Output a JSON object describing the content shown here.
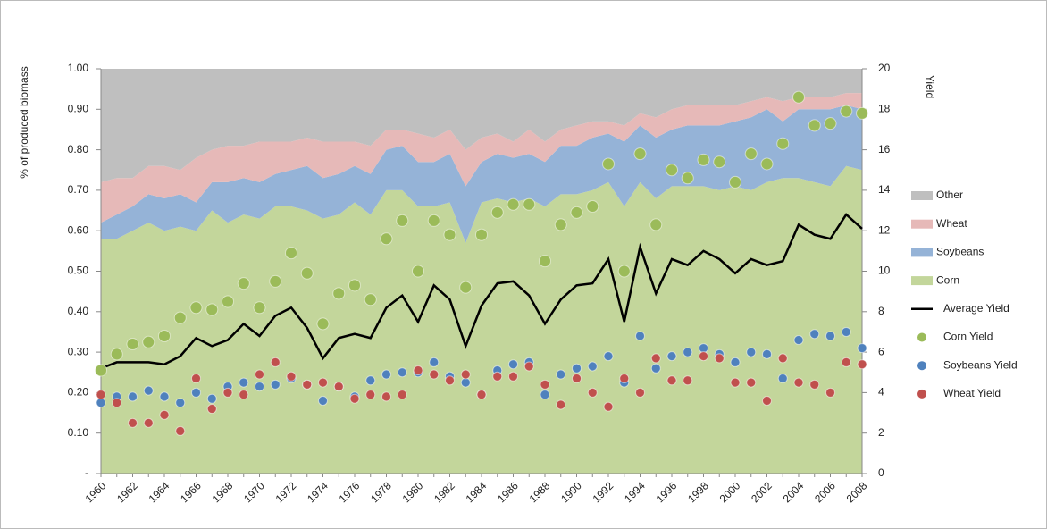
{
  "chart_data": {
    "type": "area",
    "y_label": "% of produced biomass",
    "y2_label": "Yield",
    "categories": [
      "1960",
      null,
      "1962",
      null,
      "1964",
      null,
      "1966",
      null,
      "1968",
      null,
      "1970",
      null,
      "1972",
      null,
      "1974",
      null,
      "1976",
      null,
      "1978",
      null,
      "1980",
      null,
      "1982",
      null,
      "1984",
      null,
      "1986",
      null,
      "1988",
      null,
      "1990",
      null,
      "1992",
      null,
      "1994",
      null,
      "1996",
      null,
      "1998",
      null,
      "2000",
      null,
      "2002",
      null,
      "2004",
      null,
      "2006",
      null,
      "2008"
    ],
    "ylim": [
      0,
      1
    ],
    "yticks": [
      {
        "value": 0,
        "label": "-"
      },
      {
        "value": 0.1,
        "label": "0.10"
      },
      {
        "value": 0.2,
        "label": "0.20"
      },
      {
        "value": 0.3,
        "label": "0.30"
      },
      {
        "value": 0.4,
        "label": "0.40"
      },
      {
        "value": 0.5,
        "label": "0.50"
      },
      {
        "value": 0.6,
        "label": "0.60"
      },
      {
        "value": 0.7,
        "label": "0.70"
      },
      {
        "value": 0.8,
        "label": "0.80"
      },
      {
        "value": 0.9,
        "label": "0.90"
      },
      {
        "value": 1,
        "label": "1.00"
      }
    ],
    "y2lim": [
      0,
      20
    ],
    "y2ticks": [
      0,
      2,
      4,
      6,
      8,
      10,
      12,
      14,
      16,
      18,
      20
    ],
    "grid": false,
    "legend": "right",
    "series": [
      {
        "name": "Other",
        "type": "area",
        "color": "#bfbfbf",
        "values": [
          0.28,
          0.27,
          0.27,
          0.24,
          0.24,
          0.25,
          0.22,
          0.2,
          0.19,
          0.19,
          0.18,
          0.18,
          0.18,
          0.17,
          0.18,
          0.18,
          0.18,
          0.19,
          0.15,
          0.15,
          0.16,
          0.17,
          0.15,
          0.2,
          0.17,
          0.16,
          0.18,
          0.15,
          0.18,
          0.15,
          0.14,
          0.13,
          0.13,
          0.14,
          0.11,
          0.12,
          0.1,
          0.09,
          0.09,
          0.09,
          0.09,
          0.08,
          0.07,
          0.08,
          0.07,
          0.07,
          0.07,
          0.06,
          0.06
        ]
      },
      {
        "name": "Wheat",
        "type": "area",
        "color": "#e6b9b8",
        "values": [
          0.1,
          0.09,
          0.07,
          0.07,
          0.08,
          0.06,
          0.11,
          0.08,
          0.09,
          0.08,
          0.1,
          0.08,
          0.07,
          0.07,
          0.09,
          0.08,
          0.06,
          0.07,
          0.05,
          0.04,
          0.07,
          0.06,
          0.06,
          0.09,
          0.06,
          0.05,
          0.04,
          0.06,
          0.05,
          0.04,
          0.05,
          0.04,
          0.03,
          0.04,
          0.03,
          0.05,
          0.05,
          0.05,
          0.05,
          0.05,
          0.04,
          0.04,
          0.03,
          0.05,
          0.03,
          0.03,
          0.03,
          0.03,
          0.04
        ]
      },
      {
        "name": "Soybeans",
        "type": "area",
        "color": "#95b3d7",
        "values": [
          0.04,
          0.06,
          0.06,
          0.07,
          0.08,
          0.08,
          0.07,
          0.07,
          0.1,
          0.09,
          0.09,
          0.08,
          0.09,
          0.11,
          0.1,
          0.1,
          0.09,
          0.1,
          0.1,
          0.11,
          0.11,
          0.11,
          0.12,
          0.14,
          0.1,
          0.11,
          0.11,
          0.11,
          0.11,
          0.12,
          0.12,
          0.13,
          0.12,
          0.16,
          0.14,
          0.15,
          0.14,
          0.15,
          0.15,
          0.16,
          0.16,
          0.18,
          0.18,
          0.14,
          0.17,
          0.18,
          0.19,
          0.15,
          0.15
        ]
      },
      {
        "name": "Corn",
        "type": "area",
        "color": "#c3d69b",
        "values": [
          0.58,
          0.58,
          0.6,
          0.62,
          0.6,
          0.61,
          0.6,
          0.65,
          0.62,
          0.64,
          0.63,
          0.66,
          0.66,
          0.65,
          0.63,
          0.64,
          0.67,
          0.64,
          0.7,
          0.7,
          0.66,
          0.66,
          0.67,
          0.57,
          0.67,
          0.68,
          0.67,
          0.68,
          0.66,
          0.69,
          0.69,
          0.7,
          0.72,
          0.66,
          0.72,
          0.68,
          0.71,
          0.71,
          0.71,
          0.7,
          0.71,
          0.7,
          0.72,
          0.73,
          0.73,
          0.72,
          0.71,
          0.76,
          0.75
        ]
      },
      {
        "name": "Average Yield",
        "type": "line",
        "axis": "y2",
        "color": "#000000",
        "values": [
          5.2,
          5.5,
          5.5,
          5.5,
          5.4,
          5.8,
          6.7,
          6.3,
          6.6,
          7.4,
          6.8,
          7.8,
          8.2,
          7.2,
          5.7,
          6.7,
          6.9,
          6.7,
          8.2,
          8.8,
          7.5,
          9.3,
          8.6,
          6.3,
          8.3,
          9.4,
          9.5,
          8.8,
          7.4,
          8.6,
          9.3,
          9.4,
          10.6,
          7.5,
          11.2,
          8.9,
          10.6,
          10.3,
          11.0,
          10.6,
          9.9,
          10.6,
          10.3,
          10.5,
          12.3,
          11.8,
          11.6,
          12.8,
          12.1
        ]
      },
      {
        "name": "Corn Yield",
        "type": "scatter",
        "axis": "y2",
        "color": "#9bbb59",
        "values": [
          5.1,
          5.9,
          6.4,
          6.5,
          6.8,
          7.7,
          8.2,
          8.1,
          8.5,
          9.4,
          8.2,
          9.5,
          10.9,
          9.9,
          7.4,
          8.9,
          9.3,
          8.6,
          11.6,
          12.5,
          10.0,
          12.5,
          11.8,
          9.2,
          11.8,
          12.9,
          13.3,
          13.3,
          10.5,
          12.3,
          12.9,
          13.2,
          15.3,
          10.0,
          15.8,
          12.3,
          15.0,
          14.6,
          15.5,
          15.4,
          14.4,
          15.8,
          15.3,
          16.3,
          18.6,
          17.2,
          17.3,
          17.9,
          17.8
        ]
      },
      {
        "name": "Soybeans Yield",
        "type": "scatter",
        "axis": "y2",
        "color": "#4f81bd",
        "values": [
          3.5,
          3.8,
          3.8,
          4.1,
          3.8,
          3.5,
          4.0,
          3.7,
          4.3,
          4.5,
          4.3,
          4.4,
          4.7,
          4.4,
          3.6,
          4.3,
          3.8,
          4.6,
          4.9,
          5.0,
          5.0,
          5.5,
          4.8,
          4.5,
          3.9,
          5.1,
          5.4,
          5.5,
          3.9,
          4.9,
          5.2,
          5.3,
          5.8,
          4.5,
          6.8,
          5.2,
          5.8,
          6.0,
          6.2,
          5.9,
          5.5,
          6.0,
          5.9,
          4.7,
          6.6,
          6.9,
          6.8,
          7.0,
          6.2
        ]
      },
      {
        "name": "Wheat Yield",
        "type": "scatter",
        "axis": "y2",
        "color": "#c0504d",
        "values": [
          3.9,
          3.5,
          2.5,
          2.5,
          2.9,
          2.1,
          4.7,
          3.2,
          4.0,
          3.9,
          4.9,
          5.5,
          4.8,
          4.4,
          4.5,
          4.3,
          3.7,
          3.9,
          3.8,
          3.9,
          5.1,
          4.9,
          4.6,
          4.9,
          3.9,
          4.8,
          4.8,
          5.3,
          4.4,
          3.4,
          4.7,
          4.0,
          3.3,
          4.7,
          4.0,
          5.7,
          4.6,
          4.6,
          5.8,
          5.7,
          4.5,
          4.5,
          3.6,
          5.7,
          4.5,
          4.4,
          4.0,
          5.5,
          5.4
        ]
      }
    ]
  }
}
